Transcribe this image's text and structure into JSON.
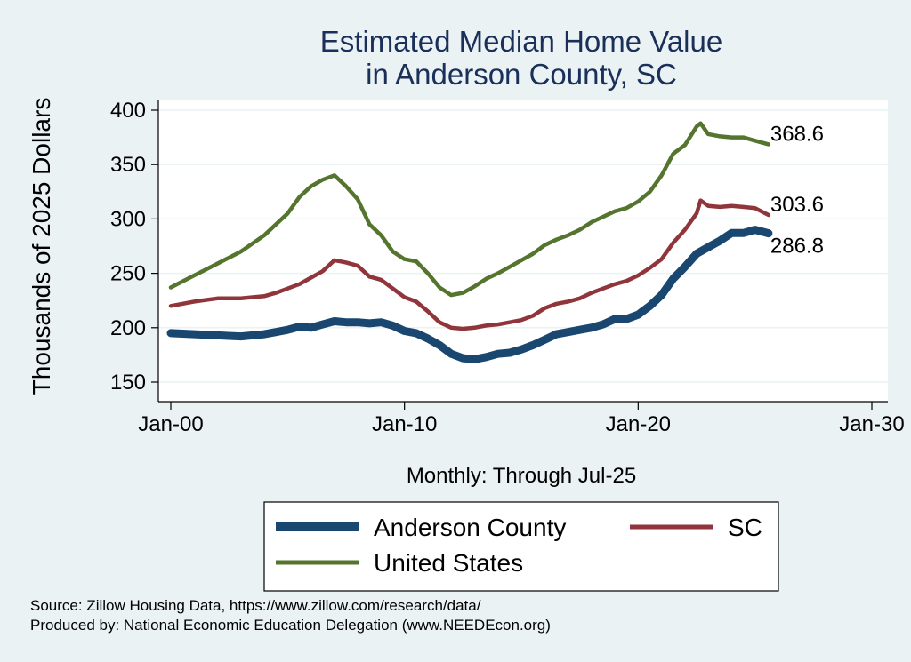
{
  "chart_data": {
    "type": "line",
    "title": [
      "Estimated Median Home Value",
      "in Anderson County, SC"
    ],
    "ylabel": "Thousands of 2025 Dollars",
    "xlabel": "Monthly: Through Jul-25",
    "ylim": [
      140,
      410
    ],
    "yticks": [
      150,
      200,
      250,
      300,
      350,
      400
    ],
    "xlim": [
      2000,
      2030
    ],
    "xticks": [
      {
        "value": 2000,
        "label": "Jan-00"
      },
      {
        "value": 2010,
        "label": "Jan-10"
      },
      {
        "value": 2020,
        "label": "Jan-20"
      },
      {
        "value": 2030,
        "label": "Jan-30"
      }
    ],
    "grid": true,
    "legend_position": "bottom",
    "series": [
      {
        "name": "Anderson County",
        "color": "#1a476f",
        "end_label": "286.8",
        "points": [
          [
            2000.0,
            195
          ],
          [
            2001.0,
            194
          ],
          [
            2002.0,
            193
          ],
          [
            2003.0,
            192
          ],
          [
            2004.0,
            194
          ],
          [
            2004.5,
            196
          ],
          [
            2005.0,
            198
          ],
          [
            2005.5,
            201
          ],
          [
            2006.0,
            200
          ],
          [
            2006.5,
            203
          ],
          [
            2007.0,
            206
          ],
          [
            2007.5,
            205
          ],
          [
            2008.0,
            205
          ],
          [
            2008.5,
            204
          ],
          [
            2009.0,
            205
          ],
          [
            2009.5,
            202
          ],
          [
            2010.0,
            197
          ],
          [
            2010.5,
            195
          ],
          [
            2011.0,
            190
          ],
          [
            2011.5,
            184
          ],
          [
            2012.0,
            176
          ],
          [
            2012.5,
            172
          ],
          [
            2013.0,
            171
          ],
          [
            2013.5,
            173
          ],
          [
            2014.0,
            176
          ],
          [
            2014.5,
            177
          ],
          [
            2015.0,
            180
          ],
          [
            2015.5,
            184
          ],
          [
            2016.0,
            189
          ],
          [
            2016.5,
            194
          ],
          [
            2017.0,
            196
          ],
          [
            2017.5,
            198
          ],
          [
            2018.0,
            200
          ],
          [
            2018.5,
            203
          ],
          [
            2019.0,
            208
          ],
          [
            2019.5,
            208
          ],
          [
            2020.0,
            212
          ],
          [
            2020.5,
            220
          ],
          [
            2021.0,
            230
          ],
          [
            2021.5,
            245
          ],
          [
            2022.0,
            256
          ],
          [
            2022.5,
            268
          ],
          [
            2023.0,
            274
          ],
          [
            2023.5,
            280
          ],
          [
            2024.0,
            287
          ],
          [
            2024.5,
            287
          ],
          [
            2025.0,
            290
          ],
          [
            2025.58,
            286.8
          ]
        ]
      },
      {
        "name": "SC",
        "color": "#90353b",
        "end_label": "303.6",
        "points": [
          [
            2000.0,
            220
          ],
          [
            2001.0,
            224
          ],
          [
            2002.0,
            227
          ],
          [
            2003.0,
            227
          ],
          [
            2004.0,
            229
          ],
          [
            2004.5,
            232
          ],
          [
            2005.0,
            236
          ],
          [
            2005.5,
            240
          ],
          [
            2006.0,
            246
          ],
          [
            2006.5,
            252
          ],
          [
            2007.0,
            262
          ],
          [
            2007.5,
            260
          ],
          [
            2008.0,
            257
          ],
          [
            2008.5,
            247
          ],
          [
            2009.0,
            244
          ],
          [
            2009.5,
            236
          ],
          [
            2010.0,
            228
          ],
          [
            2010.5,
            224
          ],
          [
            2011.0,
            215
          ],
          [
            2011.5,
            205
          ],
          [
            2012.0,
            200
          ],
          [
            2012.5,
            199
          ],
          [
            2013.0,
            200
          ],
          [
            2013.5,
            202
          ],
          [
            2014.0,
            203
          ],
          [
            2014.5,
            205
          ],
          [
            2015.0,
            207
          ],
          [
            2015.5,
            211
          ],
          [
            2016.0,
            218
          ],
          [
            2016.5,
            222
          ],
          [
            2017.0,
            224
          ],
          [
            2017.5,
            227
          ],
          [
            2018.0,
            232
          ],
          [
            2018.5,
            236
          ],
          [
            2019.0,
            240
          ],
          [
            2019.5,
            243
          ],
          [
            2020.0,
            248
          ],
          [
            2020.5,
            255
          ],
          [
            2021.0,
            263
          ],
          [
            2021.5,
            278
          ],
          [
            2022.0,
            290
          ],
          [
            2022.5,
            305
          ],
          [
            2022.67,
            317
          ],
          [
            2023.0,
            312
          ],
          [
            2023.5,
            311
          ],
          [
            2024.0,
            312
          ],
          [
            2024.5,
            311
          ],
          [
            2025.0,
            310
          ],
          [
            2025.58,
            303.6
          ]
        ]
      },
      {
        "name": "United States",
        "color": "#55752f",
        "end_label": "368.6",
        "points": [
          [
            2000.0,
            237
          ],
          [
            2001.0,
            248
          ],
          [
            2002.0,
            259
          ],
          [
            2003.0,
            270
          ],
          [
            2004.0,
            285
          ],
          [
            2004.5,
            295
          ],
          [
            2005.0,
            305
          ],
          [
            2005.5,
            320
          ],
          [
            2006.0,
            330
          ],
          [
            2006.5,
            336
          ],
          [
            2007.0,
            340
          ],
          [
            2007.5,
            330
          ],
          [
            2008.0,
            318
          ],
          [
            2008.5,
            295
          ],
          [
            2009.0,
            285
          ],
          [
            2009.5,
            270
          ],
          [
            2010.0,
            263
          ],
          [
            2010.5,
            261
          ],
          [
            2011.0,
            250
          ],
          [
            2011.5,
            237
          ],
          [
            2012.0,
            230
          ],
          [
            2012.5,
            232
          ],
          [
            2013.0,
            238
          ],
          [
            2013.5,
            245
          ],
          [
            2014.0,
            250
          ],
          [
            2014.5,
            256
          ],
          [
            2015.0,
            262
          ],
          [
            2015.5,
            268
          ],
          [
            2016.0,
            276
          ],
          [
            2016.5,
            281
          ],
          [
            2017.0,
            285
          ],
          [
            2017.5,
            290
          ],
          [
            2018.0,
            297
          ],
          [
            2018.5,
            302
          ],
          [
            2019.0,
            307
          ],
          [
            2019.5,
            310
          ],
          [
            2020.0,
            316
          ],
          [
            2020.5,
            325
          ],
          [
            2021.0,
            340
          ],
          [
            2021.5,
            360
          ],
          [
            2022.0,
            368
          ],
          [
            2022.5,
            385
          ],
          [
            2022.67,
            388
          ],
          [
            2023.0,
            378
          ],
          [
            2023.5,
            376
          ],
          [
            2024.0,
            375
          ],
          [
            2024.5,
            375
          ],
          [
            2025.0,
            372
          ],
          [
            2025.58,
            368.6
          ]
        ]
      }
    ]
  },
  "source_lines": [
    "Source: Zillow Housing Data, https://www.zillow.com/research/data/",
    "Produced by: National Economic Education Delegation (www.NEEDEcon.org)"
  ]
}
